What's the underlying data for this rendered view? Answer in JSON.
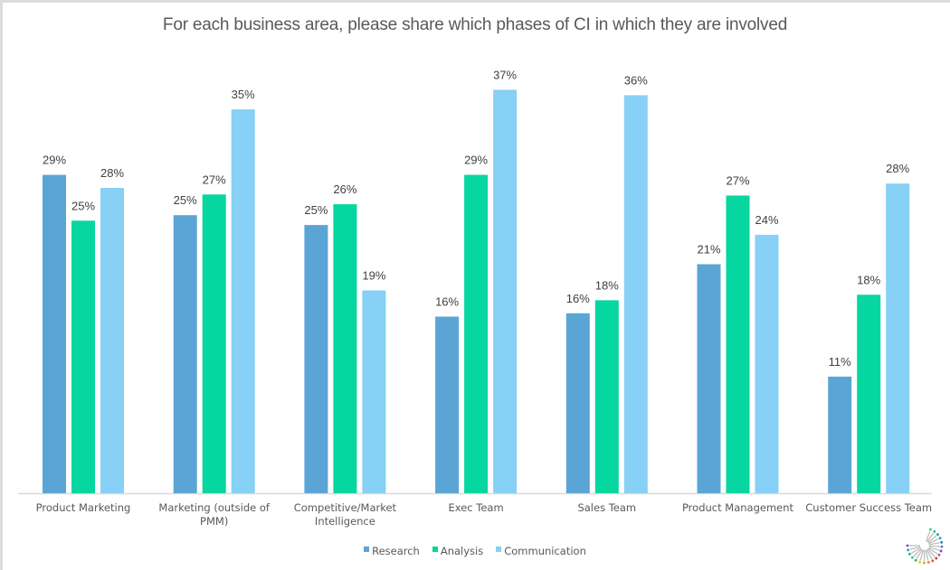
{
  "chart_data": {
    "type": "bar",
    "title": "For each business area, please share which phases of CI in which they are involved",
    "xlabel": "",
    "ylabel": "",
    "ylim": [
      0,
      38
    ],
    "grid": false,
    "legend_position": "bottom",
    "categories": [
      "Product Marketing",
      "Marketing (outside of PMM)",
      "Competitive/Market Intelligence",
      "Exec Team",
      "Sales Team",
      "Product Management",
      "Customer Success Team"
    ],
    "category_lines": [
      [
        "Product Marketing"
      ],
      [
        "Marketing (outside of",
        "PMM)"
      ],
      [
        "Competitive/Market",
        "Intelligence"
      ],
      [
        "Exec Team"
      ],
      [
        "Sales Team"
      ],
      [
        "Product Management"
      ],
      [
        "Customer Success Team"
      ]
    ],
    "series": [
      {
        "name": "Research",
        "color": "#5BA5D6",
        "values": [
          29.2,
          25.5,
          24.6,
          16.2,
          16.5,
          21.0,
          10.7
        ],
        "labels": [
          "29%",
          "25%",
          "25%",
          "16%",
          "16%",
          "21%",
          "11%"
        ]
      },
      {
        "name": "Analysis",
        "color": "#06D6A0",
        "values": [
          25.0,
          27.4,
          26.5,
          29.2,
          17.7,
          27.3,
          18.2
        ],
        "labels": [
          "25%",
          "27%",
          "26%",
          "29%",
          "18%",
          "27%",
          "18%"
        ]
      },
      {
        "name": "Communication",
        "color": "#86D1F5",
        "values": [
          28.0,
          35.2,
          18.6,
          37.0,
          36.5,
          23.7,
          28.4
        ],
        "labels": [
          "28%",
          "35%",
          "19%",
          "37%",
          "36%",
          "24%",
          "28%"
        ]
      }
    ]
  },
  "colors": {
    "axis": "#d9d9d9",
    "text": "#595959",
    "label": "#404040"
  }
}
